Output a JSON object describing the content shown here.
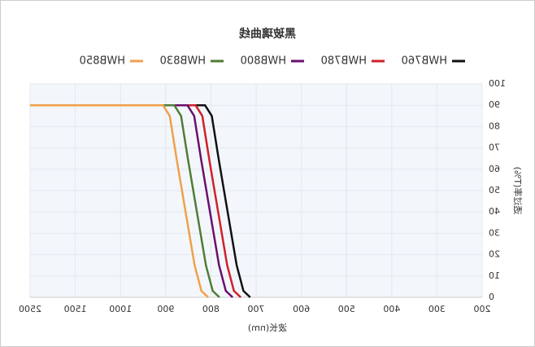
{
  "chart_data": {
    "type": "line",
    "title": "黑玻璃曲线",
    "x_label": "波长(nm)",
    "y_label": "透过率(T%)",
    "xticks": [
      200,
      300,
      400,
      500,
      600,
      700,
      800,
      900,
      1000,
      1500,
      2500
    ],
    "ylim": [
      0,
      100
    ],
    "yticks": [
      0,
      10,
      20,
      30,
      40,
      50,
      60,
      70,
      80,
      90,
      100
    ],
    "grid": true,
    "legend": "top",
    "series": [
      {
        "name": "HWB760",
        "color": "#111111",
        "x": [
          713,
          728,
          743,
          763,
          783,
          798,
          813,
          2500
        ],
        "values": [
          0,
          3,
          15,
          40,
          65,
          85,
          90,
          90
        ]
      },
      {
        "name": "HWB780",
        "color": "#d0202a",
        "x": [
          734,
          749,
          764,
          784,
          804,
          819,
          834,
          2500
        ],
        "values": [
          0,
          3,
          15,
          40,
          65,
          85,
          90,
          90
        ]
      },
      {
        "name": "HWB800",
        "color": "#6b0f6e",
        "x": [
          752,
          767,
          782,
          802,
          822,
          837,
          852,
          2500
        ],
        "values": [
          0,
          3,
          15,
          40,
          65,
          85,
          90,
          90
        ]
      },
      {
        "name": "HWB830",
        "color": "#4f7d35",
        "x": [
          781,
          796,
          811,
          831,
          851,
          866,
          881,
          2500
        ],
        "values": [
          0,
          3,
          15,
          40,
          65,
          85,
          90,
          90
        ]
      },
      {
        "name": "HWB850",
        "color": "#f0a04b",
        "x": [
          806,
          821,
          836,
          856,
          876,
          891,
          906,
          2500
        ],
        "values": [
          0,
          3,
          15,
          40,
          65,
          85,
          90,
          90
        ]
      }
    ]
  }
}
